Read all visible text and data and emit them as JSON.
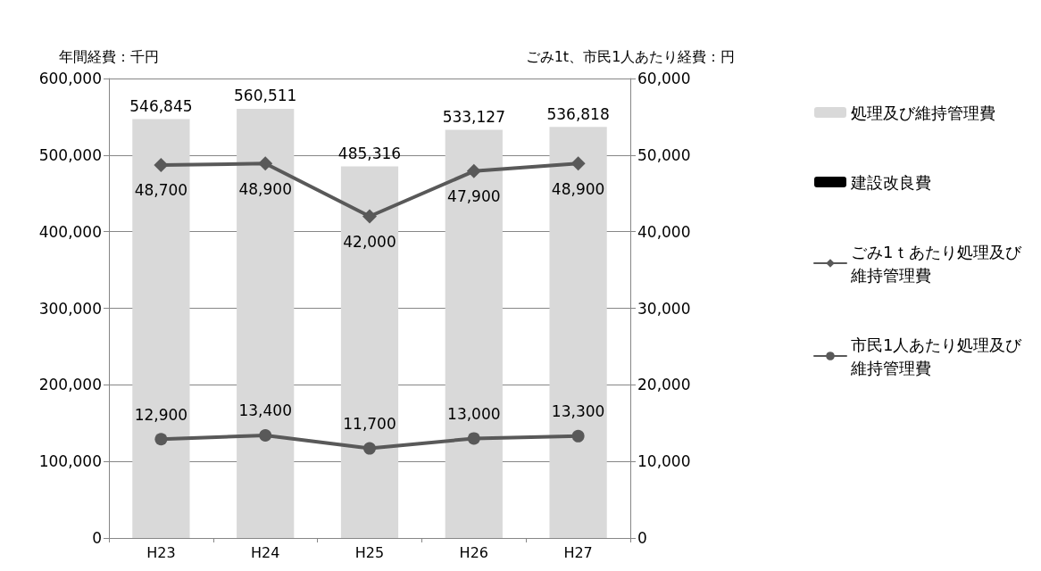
{
  "chart_data": {
    "type": "bar",
    "ylabel": "年間経費：千円",
    "y2label": "ごみ1t、市民1人あたり経費：円",
    "categories": [
      "H23",
      "H24",
      "H25",
      "H26",
      "H27"
    ],
    "series": [
      {
        "name": "処理及び維持管理費",
        "color": "#d9d9d9",
        "values": [
          546845,
          560511,
          485316,
          533127,
          536818
        ],
        "value_labels": [
          "546,845",
          "560,511",
          "485,316",
          "533,127",
          "536,818"
        ]
      },
      {
        "name": "建設改良費",
        "color": "#000000",
        "values": [
          null,
          null,
          null,
          null,
          null
        ]
      },
      {
        "name": "ごみ1ｔあたり処理及び維持管理費",
        "type": "line",
        "axis": "y2",
        "marker": "diamond",
        "color": "#595959",
        "values": [
          48700,
          48900,
          42000,
          47900,
          48900
        ],
        "value_labels": [
          "48,700",
          "48,900",
          "42,000",
          "47,900",
          "48,900"
        ]
      },
      {
        "name": "市民1人あたり処理及び維持管理費",
        "type": "line",
        "axis": "y2",
        "marker": "circle",
        "color": "#595959",
        "values": [
          12900,
          13400,
          11700,
          13000,
          13300
        ],
        "value_labels": [
          "12,900",
          "13,400",
          "11,700",
          "13,000",
          "13,300"
        ]
      }
    ],
    "ylim": [
      0,
      600000
    ],
    "yticks": [
      0,
      {
        "value": 100000,
        "label": "100,000"
      },
      {
        "value": 200000,
        "label": "200,000"
      },
      {
        "value": 300000,
        "label": "300,000"
      },
      {
        "value": 400000,
        "label": "400,000"
      },
      {
        "value": 500000,
        "label": "500,000"
      },
      {
        "value": 600000,
        "label": "600,000"
      }
    ],
    "y2lim": [
      0,
      60000
    ],
    "y2ticks": [
      0,
      {
        "value": 10000,
        "label": "10,000"
      },
      {
        "value": 20000,
        "label": "20,000"
      },
      {
        "value": 30000,
        "label": "30,000"
      },
      {
        "value": 40000,
        "label": "40,000"
      },
      {
        "value": 50000,
        "label": "50,000"
      },
      {
        "value": 60000,
        "label": "60,000"
      }
    ],
    "grid": "y",
    "legend": "right",
    "line_style": "solid"
  }
}
